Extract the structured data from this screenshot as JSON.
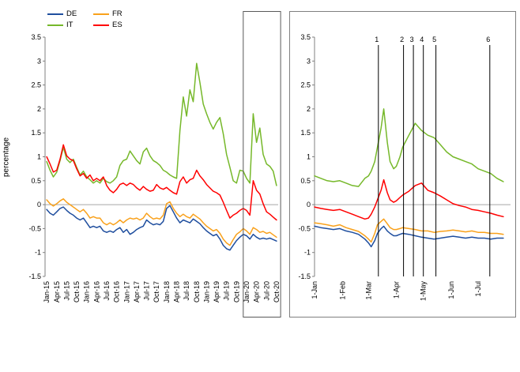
{
  "chart_data": [
    {
      "type": "line",
      "panel": "full-sample",
      "title": "",
      "ylabel": "percentage",
      "ylim": [
        -1.5,
        3.5
      ],
      "y_ticks": [
        3.5,
        3,
        2.5,
        2,
        1.5,
        1,
        0.5,
        0,
        -0.5,
        -1,
        -1.5
      ],
      "y_tick_labels": [
        "3.5",
        "3",
        "2.5",
        "2",
        "1.5",
        "1",
        "0.5",
        "0",
        "-0.5",
        "-1",
        "-1.5"
      ],
      "x_unit": "month",
      "x_count": 70,
      "x_tick_positions": [
        0,
        3,
        6,
        9,
        12,
        15,
        18,
        21,
        24,
        27,
        30,
        33,
        36,
        39,
        42,
        45,
        48,
        51,
        54,
        57,
        60,
        63,
        66,
        69
      ],
      "x_tick_labels": [
        "Jan-15",
        "Apr-15",
        "Jul-15",
        "Oct-15",
        "Jan-16",
        "Apr-16",
        "Jul-16",
        "Oct-16",
        "Jan-17",
        "Apr-17",
        "Jul-17",
        "Oct-17",
        "Jan-18",
        "Apr-18",
        "Jul-18",
        "Oct-18",
        "Jan-19",
        "Apr-19",
        "Jul-19",
        "Oct-19",
        "Jan-20",
        "Apr-20",
        "Jul-20",
        "Oct-20"
      ],
      "highlight_region": {
        "x_start_month": 59.5,
        "x_end_month": 70,
        "meaning": "2020 zoom window"
      },
      "grid": "off",
      "legend_position": "top-left",
      "series": [
        {
          "name": "DE",
          "color": "#1F4E9E",
          "values": [
            -0.1,
            -0.18,
            -0.22,
            -0.15,
            -0.08,
            -0.05,
            -0.12,
            -0.18,
            -0.22,
            -0.28,
            -0.32,
            -0.28,
            -0.38,
            -0.48,
            -0.45,
            -0.48,
            -0.45,
            -0.55,
            -0.58,
            -0.55,
            -0.58,
            -0.52,
            -0.48,
            -0.58,
            -0.52,
            -0.62,
            -0.58,
            -0.52,
            -0.48,
            -0.45,
            -0.32,
            -0.38,
            -0.42,
            -0.4,
            -0.42,
            -0.35,
            -0.08,
            -0.02,
            -0.15,
            -0.28,
            -0.38,
            -0.32,
            -0.35,
            -0.38,
            -0.3,
            -0.35,
            -0.4,
            -0.48,
            -0.55,
            -0.6,
            -0.65,
            -0.62,
            -0.72,
            -0.85,
            -0.92,
            -0.95,
            -0.85,
            -0.75,
            -0.68,
            -0.62,
            -0.65,
            -0.72,
            -0.62,
            -0.68,
            -0.72,
            -0.7,
            -0.72,
            -0.7,
            -0.73,
            -0.76
          ]
        },
        {
          "name": "FR",
          "color": "#F9A11B",
          "values": [
            0.1,
            0.02,
            -0.03,
            0.02,
            0.08,
            0.12,
            0.05,
            0.0,
            -0.05,
            -0.1,
            -0.15,
            -0.1,
            -0.18,
            -0.28,
            -0.25,
            -0.28,
            -0.28,
            -0.38,
            -0.42,
            -0.38,
            -0.42,
            -0.38,
            -0.32,
            -0.38,
            -0.32,
            -0.28,
            -0.3,
            -0.28,
            -0.32,
            -0.28,
            -0.18,
            -0.25,
            -0.3,
            -0.28,
            -0.3,
            -0.22,
            0.02,
            0.06,
            -0.08,
            -0.18,
            -0.25,
            -0.2,
            -0.25,
            -0.28,
            -0.2,
            -0.25,
            -0.3,
            -0.38,
            -0.45,
            -0.5,
            -0.55,
            -0.52,
            -0.6,
            -0.72,
            -0.8,
            -0.85,
            -0.73,
            -0.62,
            -0.57,
            -0.5,
            -0.55,
            -0.62,
            -0.48,
            -0.52,
            -0.58,
            -0.56,
            -0.6,
            -0.58,
            -0.63,
            -0.68
          ]
        },
        {
          "name": "IT",
          "color": "#76B82A",
          "values": [
            0.9,
            0.72,
            0.58,
            0.68,
            0.92,
            1.2,
            0.95,
            0.88,
            0.95,
            0.78,
            0.62,
            0.7,
            0.58,
            0.52,
            0.45,
            0.5,
            0.45,
            0.55,
            0.48,
            0.45,
            0.5,
            0.58,
            0.82,
            0.92,
            0.95,
            1.12,
            1.02,
            0.92,
            0.85,
            1.1,
            1.18,
            1.02,
            0.92,
            0.88,
            0.82,
            0.72,
            0.68,
            0.62,
            0.58,
            0.55,
            1.55,
            2.25,
            1.85,
            2.4,
            2.15,
            2.95,
            2.55,
            2.1,
            1.9,
            1.72,
            1.58,
            1.72,
            1.82,
            1.48,
            1.05,
            0.78,
            0.5,
            0.45,
            0.72,
            0.7,
            0.55,
            0.45,
            1.9,
            1.3,
            1.6,
            1.05,
            0.85,
            0.8,
            0.7,
            0.4
          ]
        },
        {
          "name": "ES",
          "color": "#FF0000",
          "values": [
            1.0,
            0.85,
            0.68,
            0.72,
            0.95,
            1.25,
            1.02,
            0.95,
            0.92,
            0.75,
            0.6,
            0.65,
            0.55,
            0.62,
            0.5,
            0.55,
            0.5,
            0.58,
            0.4,
            0.3,
            0.25,
            0.32,
            0.42,
            0.45,
            0.4,
            0.45,
            0.42,
            0.35,
            0.3,
            0.38,
            0.32,
            0.28,
            0.3,
            0.42,
            0.35,
            0.32,
            0.36,
            0.3,
            0.25,
            0.22,
            0.48,
            0.58,
            0.45,
            0.52,
            0.55,
            0.72,
            0.6,
            0.52,
            0.42,
            0.35,
            0.28,
            0.25,
            0.2,
            0.05,
            -0.12,
            -0.28,
            -0.22,
            -0.18,
            -0.12,
            -0.08,
            -0.12,
            -0.22,
            0.5,
            0.3,
            0.22,
            0.02,
            -0.15,
            -0.2,
            -0.26,
            -0.32
          ]
        }
      ]
    },
    {
      "type": "line",
      "panel": "2020-zoom",
      "title": "",
      "ylim": [
        -1.5,
        3.5
      ],
      "y_ticks": [
        3.5,
        3,
        2.5,
        2,
        1.5,
        1,
        0.5,
        0,
        -0.5,
        -1,
        -1.5
      ],
      "y_tick_labels": [
        "3.5",
        "3",
        "2.5",
        "2",
        "1.5",
        "1",
        "0.5",
        "0",
        "-0.5",
        "-1",
        "-1.5"
      ],
      "x_unit": "day-of-2020",
      "x_domain": [
        0,
        218
      ],
      "x_tick_days": [
        0,
        31,
        60,
        91,
        121,
        152,
        182
      ],
      "x_tick_labels": [
        "1-Jan",
        "1-Feb",
        "1-Mar",
        "1-Apr",
        "1-May",
        "1-Jun",
        "1-Jul"
      ],
      "x_days": [
        0,
        7,
        14,
        21,
        28,
        35,
        42,
        49,
        56,
        60,
        63,
        67,
        70,
        74,
        77,
        81,
        84,
        88,
        91,
        95,
        98,
        105,
        112,
        119,
        126,
        133,
        140,
        147,
        154,
        161,
        168,
        175,
        182,
        189,
        196,
        203,
        210
      ],
      "grid": "off",
      "event_lines": [
        {
          "label": "1",
          "day": 71
        },
        {
          "label": "2",
          "day": 99
        },
        {
          "label": "3",
          "day": 110
        },
        {
          "label": "4",
          "day": 121
        },
        {
          "label": "5",
          "day": 135
        },
        {
          "label": "6",
          "day": 195
        }
      ],
      "series": [
        {
          "name": "DE",
          "color": "#1F4E9E",
          "values": [
            -0.45,
            -0.48,
            -0.5,
            -0.52,
            -0.5,
            -0.55,
            -0.58,
            -0.62,
            -0.72,
            -0.8,
            -0.88,
            -0.75,
            -0.6,
            -0.5,
            -0.45,
            -0.55,
            -0.6,
            -0.65,
            -0.65,
            -0.62,
            -0.6,
            -0.62,
            -0.65,
            -0.68,
            -0.7,
            -0.72,
            -0.7,
            -0.68,
            -0.66,
            -0.68,
            -0.7,
            -0.68,
            -0.7,
            -0.7,
            -0.72,
            -0.7,
            -0.7
          ]
        },
        {
          "name": "FR",
          "color": "#F9A11B",
          "values": [
            -0.38,
            -0.4,
            -0.42,
            -0.45,
            -0.42,
            -0.48,
            -0.52,
            -0.56,
            -0.65,
            -0.72,
            -0.78,
            -0.6,
            -0.42,
            -0.35,
            -0.3,
            -0.4,
            -0.48,
            -0.52,
            -0.52,
            -0.5,
            -0.48,
            -0.5,
            -0.52,
            -0.55,
            -0.55,
            -0.58,
            -0.56,
            -0.55,
            -0.53,
            -0.55,
            -0.57,
            -0.55,
            -0.58,
            -0.58,
            -0.6,
            -0.6,
            -0.62
          ]
        },
        {
          "name": "IT",
          "color": "#76B82A",
          "values": [
            0.6,
            0.55,
            0.5,
            0.48,
            0.5,
            0.45,
            0.4,
            0.38,
            0.55,
            0.6,
            0.7,
            0.9,
            1.2,
            1.6,
            2.0,
            1.3,
            0.9,
            0.75,
            0.8,
            1.0,
            1.2,
            1.45,
            1.7,
            1.55,
            1.45,
            1.4,
            1.25,
            1.1,
            1.0,
            0.95,
            0.9,
            0.85,
            0.75,
            0.7,
            0.65,
            0.55,
            0.48
          ]
        },
        {
          "name": "ES",
          "color": "#FF0000",
          "values": [
            -0.05,
            -0.08,
            -0.1,
            -0.12,
            -0.1,
            -0.15,
            -0.2,
            -0.25,
            -0.3,
            -0.28,
            -0.2,
            -0.05,
            0.1,
            0.3,
            0.52,
            0.25,
            0.1,
            0.05,
            0.08,
            0.15,
            0.2,
            0.28,
            0.4,
            0.45,
            0.3,
            0.25,
            0.18,
            0.1,
            0.02,
            -0.02,
            -0.05,
            -0.1,
            -0.12,
            -0.15,
            -0.18,
            -0.22,
            -0.25
          ]
        }
      ]
    }
  ],
  "colors": {
    "zero_line": "#A6A6A6",
    "axis": "#808080",
    "event_line": "#000000",
    "panel_border": "#808080",
    "highlight_border": "#595959"
  }
}
